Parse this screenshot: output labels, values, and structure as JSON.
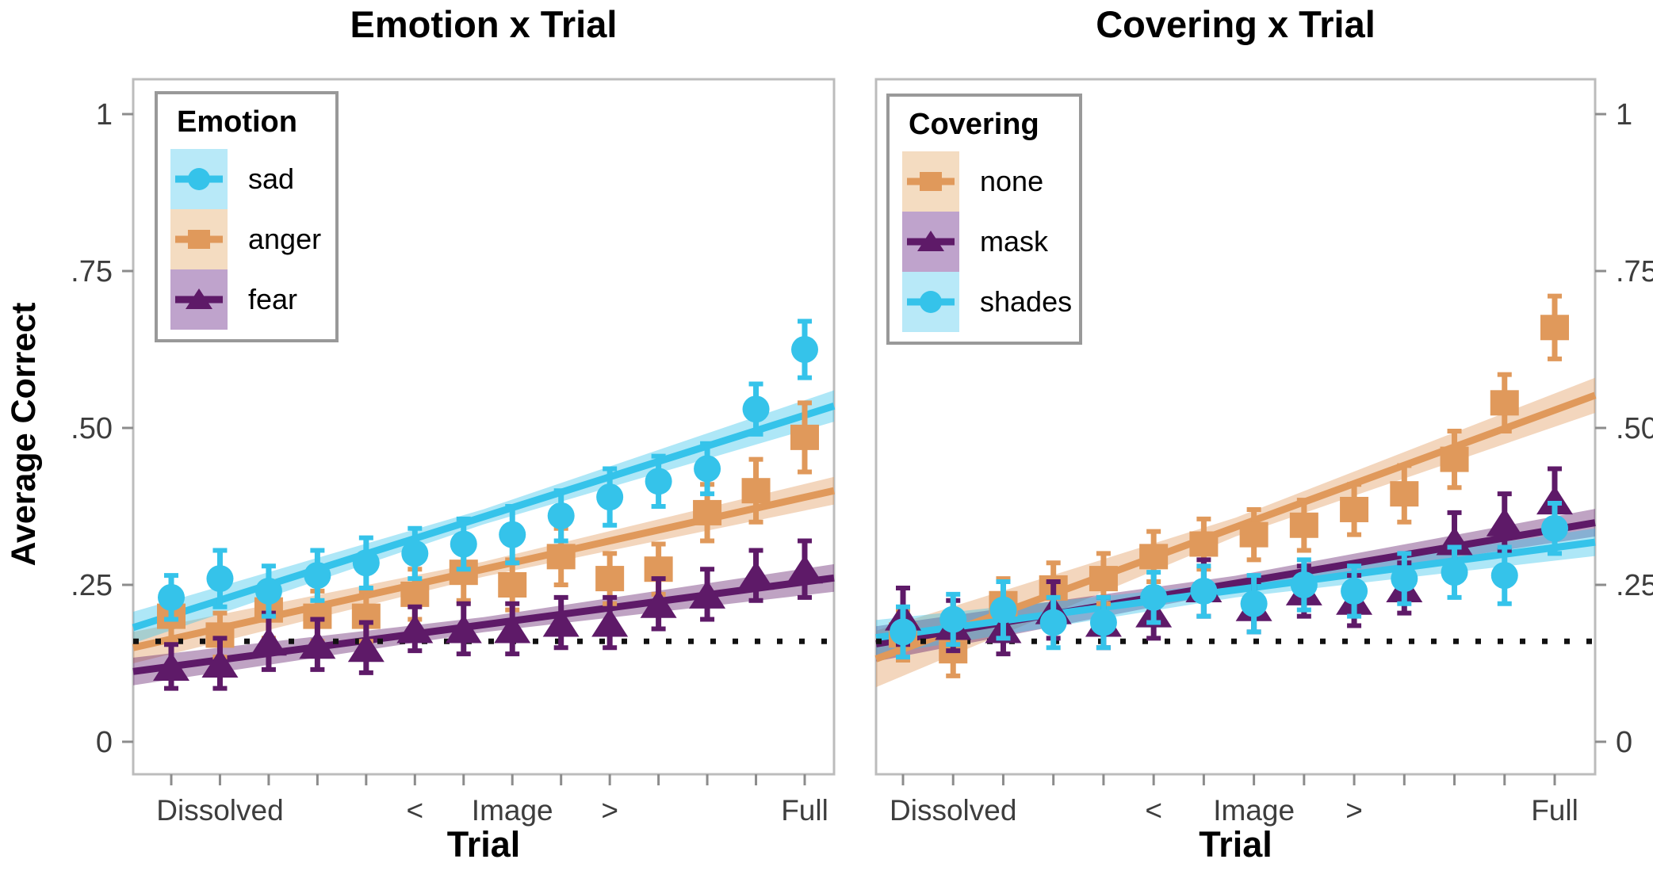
{
  "y_axis": {
    "label": "Average Correct",
    "tick_values": [
      0,
      0.25,
      0.5,
      0.75,
      1
    ],
    "tick_labels": [
      "0",
      ".25",
      ".50",
      ".75",
      "1"
    ],
    "range": [
      0,
      1
    ]
  },
  "x_axis": {
    "label": "Trial",
    "tick_count": 14,
    "labeled_ticks": [
      {
        "index": 2,
        "text": "Dissolved"
      },
      {
        "index": 6,
        "text": "<"
      },
      {
        "index": 8,
        "text": "Image"
      },
      {
        "index": 10,
        "text": ">"
      },
      {
        "index": 14,
        "text": "Full"
      }
    ]
  },
  "style_colors": {
    "sad_shades_cyan": "#35C3EA",
    "anger_none_orange": "#E0995B",
    "fear_mask_purple": "#5E1A68",
    "legend_bg_cyan": "#B8E9F8",
    "legend_bg_orange": "#F4DCC1",
    "legend_bg_purple": "#BFA3CC",
    "panel_border": "#bcbcbc",
    "tick_mark": "#8c8c8c",
    "tick_text": "#3d3d3d",
    "chance_line": "#111111"
  },
  "chart_data": [
    {
      "type": "scatter",
      "title": "Emotion x Trial",
      "xlabel": "Trial",
      "ylabel": "Average Correct",
      "ylim": [
        0,
        1
      ],
      "y_ticks": [
        0,
        0.25,
        0.5,
        0.75,
        1
      ],
      "x": [
        1,
        2,
        3,
        4,
        5,
        6,
        7,
        8,
        9,
        10,
        11,
        12,
        13,
        14
      ],
      "x_tick_labels": {
        "2": "Dissolved",
        "6": "<",
        "8": "Image",
        "10": ">",
        "14": "Full"
      },
      "legend_title": "Emotion",
      "legend_position": "top-left",
      "reference_line_y": 0.16,
      "series": [
        {
          "name": "sad",
          "marker": "circle",
          "color": "#35C3EA",
          "legend_bg": "#B8E9F8",
          "values": [
            0.23,
            0.26,
            0.24,
            0.265,
            0.285,
            0.3,
            0.315,
            0.33,
            0.36,
            0.39,
            0.415,
            0.435,
            0.53,
            0.625
          ],
          "errors": [
            0.035,
            0.045,
            0.04,
            0.04,
            0.04,
            0.04,
            0.04,
            0.045,
            0.04,
            0.045,
            0.04,
            0.04,
            0.04,
            0.045
          ],
          "trend": {
            "start": 0.182,
            "end": 0.535,
            "band_halfwidth": [
              0.025,
              0.012,
              0.025
            ]
          }
        },
        {
          "name": "anger",
          "marker": "square",
          "color": "#E0995B",
          "legend_bg": "#F4DCC1",
          "values": [
            0.2,
            0.17,
            0.21,
            0.2,
            0.2,
            0.235,
            0.27,
            0.25,
            0.295,
            0.26,
            0.275,
            0.365,
            0.4,
            0.485
          ],
          "errors": [
            0.04,
            0.035,
            0.045,
            0.04,
            0.04,
            0.04,
            0.045,
            0.04,
            0.045,
            0.04,
            0.04,
            0.045,
            0.05,
            0.055
          ],
          "trend": {
            "start": 0.15,
            "end": 0.4,
            "band_halfwidth": [
              0.025,
              0.012,
              0.022
            ]
          }
        },
        {
          "name": "fear",
          "marker": "triangle",
          "color": "#5E1A68",
          "legend_bg": "#BFA3CC",
          "values": [
            0.12,
            0.125,
            0.16,
            0.155,
            0.15,
            0.18,
            0.18,
            0.18,
            0.19,
            0.19,
            0.22,
            0.235,
            0.265,
            0.275
          ],
          "errors": [
            0.035,
            0.04,
            0.045,
            0.04,
            0.04,
            0.035,
            0.04,
            0.04,
            0.04,
            0.04,
            0.04,
            0.04,
            0.04,
            0.045
          ],
          "trend": {
            "start": 0.112,
            "end": 0.261,
            "band_halfwidth": [
              0.022,
              0.012,
              0.022
            ]
          }
        }
      ]
    },
    {
      "type": "scatter",
      "title": "Covering x Trial",
      "xlabel": "Trial",
      "ylabel": "Average Correct",
      "ylim": [
        0,
        1
      ],
      "y_ticks": [
        0,
        0.25,
        0.5,
        0.75,
        1
      ],
      "x": [
        1,
        2,
        3,
        4,
        5,
        6,
        7,
        8,
        9,
        10,
        11,
        12,
        13,
        14
      ],
      "x_tick_labels": {
        "2": "Dissolved",
        "6": "<",
        "8": "Image",
        "10": ">",
        "14": "Full"
      },
      "legend_title": "Covering",
      "legend_position": "top-left",
      "reference_line_y": 0.16,
      "series": [
        {
          "name": "none",
          "marker": "square",
          "color": "#E0995B",
          "legend_bg": "#F4DCC1",
          "values": [
            0.17,
            0.145,
            0.22,
            0.245,
            0.26,
            0.295,
            0.315,
            0.33,
            0.345,
            0.37,
            0.395,
            0.45,
            0.54,
            0.66
          ],
          "errors": [
            0.04,
            0.04,
            0.04,
            0.04,
            0.04,
            0.04,
            0.04,
            0.04,
            0.04,
            0.04,
            0.045,
            0.045,
            0.045,
            0.05
          ],
          "trend": {
            "start": 0.132,
            "end": 0.552,
            "band_halfwidth": [
              0.045,
              0.015,
              0.028
            ]
          }
        },
        {
          "name": "mask",
          "marker": "triangle",
          "color": "#5E1A68",
          "legend_bg": "#BFA3CC",
          "values": [
            0.2,
            0.185,
            0.18,
            0.21,
            0.19,
            0.205,
            0.245,
            0.215,
            0.24,
            0.225,
            0.245,
            0.32,
            0.35,
            0.385
          ],
          "errors": [
            0.045,
            0.04,
            0.04,
            0.045,
            0.04,
            0.04,
            0.045,
            0.04,
            0.04,
            0.04,
            0.04,
            0.045,
            0.045,
            0.05
          ],
          "trend": {
            "start": 0.156,
            "end": 0.349,
            "band_halfwidth": [
              0.028,
              0.012,
              0.022
            ]
          }
        },
        {
          "name": "shades",
          "marker": "circle",
          "color": "#35C3EA",
          "legend_bg": "#B8E9F8",
          "values": [
            0.175,
            0.195,
            0.21,
            0.19,
            0.19,
            0.23,
            0.24,
            0.22,
            0.25,
            0.24,
            0.26,
            0.27,
            0.265,
            0.34
          ],
          "errors": [
            0.04,
            0.04,
            0.045,
            0.04,
            0.04,
            0.04,
            0.04,
            0.045,
            0.04,
            0.04,
            0.04,
            0.04,
            0.045,
            0.04
          ],
          "trend": {
            "start": 0.166,
            "end": 0.318,
            "band_halfwidth": [
              0.028,
              0.012,
              0.022
            ]
          }
        }
      ]
    }
  ]
}
